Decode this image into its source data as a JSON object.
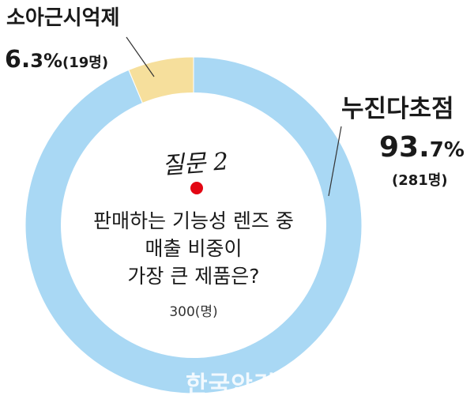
{
  "chart_data": {
    "type": "pie",
    "style": "donut",
    "question_title": "질문 2",
    "question": [
      "판매하는 기능성 렌즈 중",
      "매출 비중이",
      "가장 큰 제품은?"
    ],
    "total": "300(명)",
    "slices": [
      {
        "name": "누진다초점",
        "percent": 93.7,
        "percent_label": "93.",
        "percent_decimal": "7",
        "percent_unit": "%",
        "count_label": "(281명)",
        "color": "#a9d8f4"
      },
      {
        "name": "소아근시억제",
        "percent": 6.3,
        "percent_label": "6.",
        "percent_decimal": "3",
        "percent_unit": "%",
        "count_label": "(19명)",
        "color": "#f6df9c"
      }
    ],
    "marker_color": "#e30613"
  },
  "watermark": "한국안경신문"
}
